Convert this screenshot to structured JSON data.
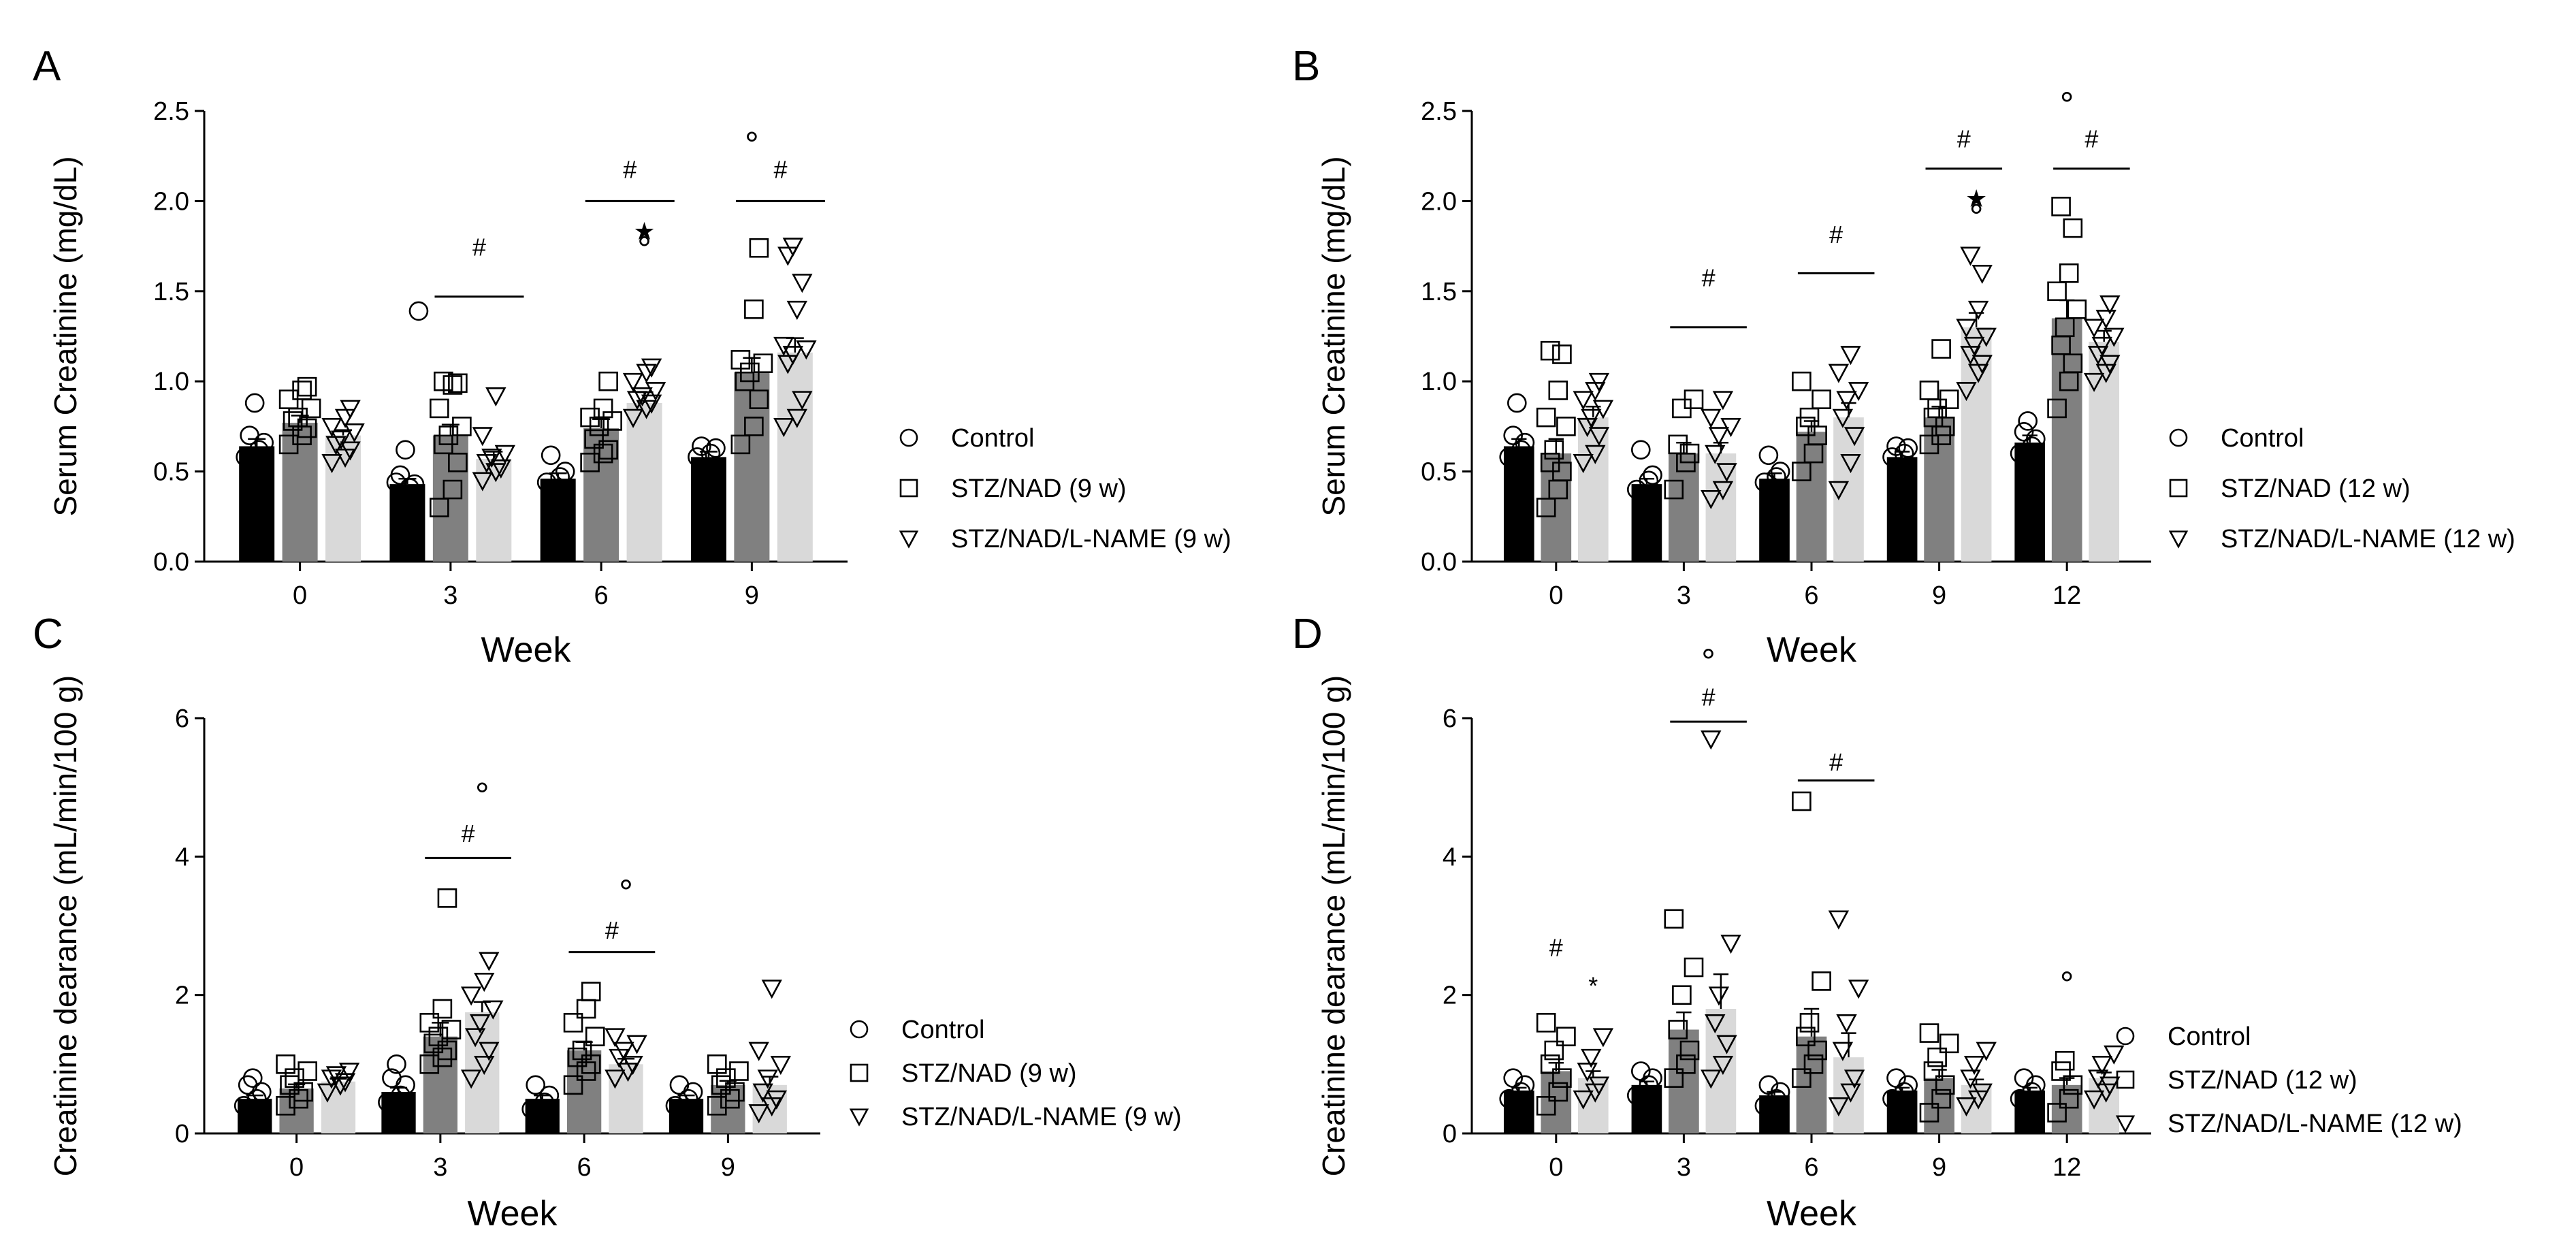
{
  "figure": {
    "labels": [
      "A",
      "B",
      "C",
      "D"
    ]
  },
  "chart_data": [
    {
      "panel": "A",
      "type": "bar",
      "xlabel": "Week",
      "ylabel": "Serum Creatinine (mg/dL)",
      "ylim": [
        0,
        2.5
      ],
      "y_ticks": [
        "0.0",
        "0.5",
        "1.0",
        "1.5",
        "2.0",
        "2.5"
      ],
      "categories": [
        "0",
        "3",
        "6",
        "9"
      ],
      "series": [
        {
          "name": "Control",
          "marker": "circle",
          "color": "#000000",
          "values": [
            0.64,
            0.43,
            0.46,
            0.58
          ],
          "errors": [
            0.04,
            0.03,
            0.03,
            0.03
          ]
        },
        {
          "name": "STZ/NAD (9 w)",
          "marker": "square",
          "color": "#808080",
          "values": [
            0.77,
            0.7,
            0.74,
            1.05
          ],
          "errors": [
            0.04,
            0.06,
            0.05,
            0.08
          ]
        },
        {
          "name": "STZ/NAD/L-NAME (9 w)",
          "marker": "triangle",
          "color": "#d9d9d9",
          "values": [
            0.7,
            0.57,
            0.88,
            1.16
          ],
          "errors": [
            0.03,
            0.04,
            0.06,
            0.08
          ]
        }
      ],
      "points": [
        [
          [
            0.58,
            0.62,
            0.66,
            0.7,
            0.88
          ],
          [
            0.44,
            0.41,
            0.43,
            0.48,
            0.62,
            1.39
          ],
          [
            0.44,
            0.47,
            0.5,
            0.59
          ],
          [
            0.58,
            0.6,
            0.63,
            0.64
          ]
        ],
        [
          [
            0.65,
            0.7,
            0.74,
            0.78,
            0.8,
            0.85,
            0.9,
            0.95,
            0.97
          ],
          [
            0.3,
            0.4,
            0.55,
            0.65,
            0.7,
            0.75,
            0.85,
            0.98,
            0.99,
            1.0
          ],
          [
            0.55,
            0.6,
            0.62,
            0.68,
            0.75,
            0.78,
            0.8,
            0.85,
            1.0
          ],
          [
            0.65,
            0.75,
            0.9,
            1.0,
            1.05,
            1.1,
            1.12,
            1.4,
            1.74
          ]
        ],
        [
          [
            0.55,
            0.58,
            0.62,
            0.65,
            0.68,
            0.72,
            0.75,
            0.8,
            0.85
          ],
          [
            0.45,
            0.5,
            0.52,
            0.55,
            0.58,
            0.6,
            0.7,
            0.92
          ],
          [
            0.8,
            0.85,
            0.88,
            0.9,
            0.92,
            0.95,
            1.0,
            1.05,
            1.08
          ],
          [
            0.75,
            0.8,
            0.9,
            1.1,
            1.15,
            1.18,
            1.2,
            1.4,
            1.55,
            1.7,
            1.75
          ]
        ]
      ],
      "annotations": [
        {
          "cat": 1,
          "text": "#",
          "y": 1.75
        },
        {
          "cat": 2,
          "text": "#",
          "y": 2.18
        },
        {
          "cat": 2,
          "text": "★",
          "series": 2,
          "y": 1.84
        },
        {
          "cat": 2,
          "text": "°",
          "series": 2,
          "y": 1.72
        },
        {
          "cat": 3,
          "text": "#",
          "y": 2.18
        },
        {
          "cat": 3,
          "text": "°",
          "series": 1,
          "y": 2.3
        }
      ],
      "sig_lines": [
        {
          "cat": 1,
          "y": 1.47
        },
        {
          "cat": 2,
          "y": 2.0
        },
        {
          "cat": 3,
          "y": 2.0
        }
      ],
      "legend": [
        "Control",
        "STZ/NAD (9 w)",
        "STZ/NAD/L-NAME (9 w)"
      ]
    },
    {
      "panel": "B",
      "type": "bar",
      "xlabel": "Week",
      "ylabel": "Serum Creatinine (mg/dL)",
      "ylim": [
        0,
        2.5
      ],
      "y_ticks": [
        "0.0",
        "0.5",
        "1.0",
        "1.5",
        "2.0",
        "2.5"
      ],
      "categories": [
        "0",
        "3",
        "6",
        "9",
        "12"
      ],
      "series": [
        {
          "name": "Control",
          "marker": "circle",
          "color": "#000000",
          "values": [
            0.64,
            0.43,
            0.46,
            0.58,
            0.66
          ],
          "errors": [
            0.04,
            0.03,
            0.03,
            0.03,
            0.04
          ]
        },
        {
          "name": "STZ/NAD (12 w)",
          "marker": "square",
          "color": "#808080",
          "values": [
            0.6,
            0.6,
            0.72,
            0.8,
            1.35
          ],
          "errors": [
            0.08,
            0.06,
            0.06,
            0.06,
            0.1
          ]
        },
        {
          "name": "STZ/NAD/L-NAME (12 w)",
          "marker": "triangle",
          "color": "#d9d9d9",
          "values": [
            0.8,
            0.6,
            0.8,
            1.3,
            1.22
          ],
          "errors": [
            0.06,
            0.06,
            0.08,
            0.08,
            0.06
          ]
        }
      ],
      "points": [
        [
          [
            0.58,
            0.62,
            0.66,
            0.7,
            0.88
          ],
          [
            0.4,
            0.45,
            0.48,
            0.62
          ],
          [
            0.44,
            0.47,
            0.5,
            0.59
          ],
          [
            0.58,
            0.6,
            0.63,
            0.64
          ],
          [
            0.6,
            0.64,
            0.68,
            0.72,
            0.78
          ]
        ],
        [
          [
            0.3,
            0.4,
            0.5,
            0.55,
            0.62,
            0.75,
            0.8,
            0.95,
            1.15,
            1.17
          ],
          [
            0.4,
            0.55,
            0.6,
            0.65,
            0.85,
            0.9
          ],
          [
            0.5,
            0.6,
            0.7,
            0.75,
            0.8,
            0.9,
            1.0
          ],
          [
            0.65,
            0.7,
            0.75,
            0.8,
            0.85,
            0.9,
            0.95,
            1.18
          ],
          [
            0.85,
            1.0,
            1.1,
            1.2,
            1.3,
            1.4,
            1.5,
            1.6,
            1.85,
            1.97
          ]
        ],
        [
          [
            0.55,
            0.6,
            0.7,
            0.75,
            0.8,
            0.85,
            0.9,
            0.95,
            1.0
          ],
          [
            0.35,
            0.4,
            0.5,
            0.6,
            0.7,
            0.75,
            0.8,
            0.9
          ],
          [
            0.4,
            0.55,
            0.7,
            0.8,
            0.9,
            0.95,
            1.05,
            1.15
          ],
          [
            0.95,
            1.05,
            1.1,
            1.15,
            1.2,
            1.25,
            1.3,
            1.4,
            1.6,
            1.7
          ],
          [
            1.0,
            1.05,
            1.1,
            1.15,
            1.2,
            1.25,
            1.3,
            1.35,
            1.43
          ]
        ]
      ],
      "annotations": [
        {
          "cat": 1,
          "text": "#",
          "y": 1.58
        },
        {
          "cat": 2,
          "text": "#",
          "y": 1.82
        },
        {
          "cat": 3,
          "text": "#",
          "y": 2.35
        },
        {
          "cat": 3,
          "text": "★",
          "series": 2,
          "y": 2.02
        },
        {
          "cat": 3,
          "text": "°",
          "series": 2,
          "y": 1.9
        },
        {
          "cat": 4,
          "text": "#",
          "y": 2.35
        },
        {
          "cat": 4,
          "text": "°",
          "series": 1,
          "y": 2.52
        }
      ],
      "sig_lines": [
        {
          "cat": 1,
          "y": 1.3
        },
        {
          "cat": 2,
          "y": 1.6
        },
        {
          "cat": 3,
          "y": 2.18
        },
        {
          "cat": 4,
          "y": 2.18
        }
      ],
      "legend": [
        "Control",
        "STZ/NAD (12 w)",
        "STZ/NAD/L-NAME (12 w)"
      ]
    },
    {
      "panel": "C",
      "type": "bar",
      "xlabel": "Week",
      "ylabel": "Creatinine dearance (mL/min/100 g)",
      "ylim": [
        0,
        6
      ],
      "y_ticks": [
        "0",
        "2",
        "4",
        "6"
      ],
      "categories": [
        "0",
        "3",
        "6",
        "9"
      ],
      "series": [
        {
          "name": "Control",
          "marker": "circle",
          "color": "#000000",
          "values": [
            0.5,
            0.6,
            0.5,
            0.5
          ],
          "errors": [
            0.05,
            0.06,
            0.05,
            0.05
          ]
        },
        {
          "name": "STZ/NAD (9 w)",
          "marker": "square",
          "color": "#808080",
          "values": [
            0.65,
            1.4,
            1.2,
            0.7
          ],
          "errors": [
            0.06,
            0.2,
            0.12,
            0.06
          ]
        },
        {
          "name": "STZ/NAD/L-NAME (9 w)",
          "marker": "triangle",
          "color": "#d9d9d9",
          "values": [
            0.75,
            1.75,
            1.0,
            0.7
          ],
          "errors": [
            0.04,
            0.15,
            0.08,
            0.12
          ]
        }
      ],
      "points": [
        [
          [
            0.4,
            0.5,
            0.6,
            0.7,
            0.8
          ],
          [
            0.45,
            0.55,
            0.7,
            0.8,
            1.0
          ],
          [
            0.35,
            0.45,
            0.55,
            0.7
          ],
          [
            0.4,
            0.5,
            0.6,
            0.7
          ]
        ],
        [
          [
            0.4,
            0.5,
            0.6,
            0.7,
            0.8,
            0.9,
            1.0
          ],
          [
            1.0,
            1.1,
            1.2,
            1.3,
            1.4,
            1.5,
            1.6,
            1.8,
            3.4
          ],
          [
            0.7,
            0.9,
            1.0,
            1.1,
            1.2,
            1.4,
            1.6,
            1.8,
            2.05
          ],
          [
            0.4,
            0.5,
            0.6,
            0.7,
            0.8,
            0.9,
            1.0
          ]
        ],
        [
          [
            0.6,
            0.7,
            0.75,
            0.8,
            0.85,
            0.9
          ],
          [
            0.8,
            1.0,
            1.2,
            1.4,
            1.6,
            1.8,
            2.0,
            2.2,
            2.5
          ],
          [
            0.8,
            0.9,
            1.0,
            1.1,
            1.2,
            1.3,
            1.4
          ],
          [
            0.3,
            0.4,
            0.5,
            0.6,
            0.8,
            1.0,
            1.2,
            2.1
          ]
        ]
      ],
      "annotations": [
        {
          "cat": 1,
          "text": "#",
          "y": 4.35
        },
        {
          "cat": 1,
          "text": "°",
          "series": 2,
          "y": 4.85
        },
        {
          "cat": 2,
          "text": "#",
          "y": 2.95
        },
        {
          "cat": 2,
          "text": "°",
          "series": 2,
          "y": 3.45
        }
      ],
      "sig_lines": [
        {
          "cat": 1,
          "y": 3.98
        },
        {
          "cat": 2,
          "y": 2.62
        }
      ],
      "legend": [
        "Control",
        "STZ/NAD (9 w)",
        "STZ/NAD/L-NAME (9 w)"
      ]
    },
    {
      "panel": "D",
      "type": "bar",
      "xlabel": "Week",
      "ylabel": "Creatinine dearance (mL/min/100 g)",
      "ylim": [
        0,
        6
      ],
      "y_ticks": [
        "0",
        "2",
        "4",
        "6"
      ],
      "categories": [
        "0",
        "3",
        "6",
        "9",
        "12"
      ],
      "series": [
        {
          "name": "Control",
          "marker": "circle",
          "color": "#000000",
          "values": [
            0.62,
            0.7,
            0.55,
            0.62,
            0.62
          ],
          "errors": [
            0.04,
            0.05,
            0.05,
            0.04,
            0.04
          ]
        },
        {
          "name": "STZ/NAD (12 w)",
          "marker": "square",
          "color": "#808080",
          "values": [
            0.9,
            1.5,
            1.4,
            0.8,
            0.7
          ],
          "errors": [
            0.12,
            0.25,
            0.4,
            0.12,
            0.1
          ]
        },
        {
          "name": "STZ/NAD/L-NAME (12 w)",
          "marker": "triangle",
          "color": "#d9d9d9",
          "values": [
            0.8,
            1.8,
            1.1,
            0.7,
            0.8
          ],
          "errors": [
            0.1,
            0.5,
            0.35,
            0.08,
            0.08
          ]
        }
      ],
      "points": [
        [
          [
            0.5,
            0.6,
            0.7,
            0.8
          ],
          [
            0.55,
            0.7,
            0.8,
            0.9
          ],
          [
            0.4,
            0.5,
            0.6,
            0.7
          ],
          [
            0.5,
            0.6,
            0.7,
            0.8
          ],
          [
            0.5,
            0.6,
            0.7,
            0.8
          ]
        ],
        [
          [
            0.4,
            0.6,
            0.8,
            1.0,
            1.2,
            1.4,
            1.6
          ],
          [
            0.8,
            1.0,
            1.2,
            1.5,
            2.0,
            2.4,
            3.1
          ],
          [
            0.8,
            1.0,
            1.2,
            1.4,
            1.6,
            2.2,
            4.8
          ],
          [
            0.3,
            0.5,
            0.7,
            0.9,
            1.1,
            1.3,
            1.45
          ],
          [
            0.3,
            0.5,
            0.7,
            0.9,
            1.05
          ]
        ],
        [
          [
            0.5,
            0.6,
            0.7,
            0.9,
            1.1,
            1.4
          ],
          [
            0.8,
            1.0,
            1.3,
            1.6,
            2.0,
            2.75,
            5.7
          ],
          [
            0.4,
            0.6,
            0.8,
            1.2,
            1.6,
            2.1,
            3.1
          ],
          [
            0.4,
            0.5,
            0.6,
            0.8,
            1.0,
            1.2
          ],
          [
            0.5,
            0.6,
            0.7,
            0.8,
            1.0,
            1.15
          ]
        ]
      ],
      "annotations": [
        {
          "cat": 0,
          "text": "#",
          "series": 1,
          "y": 2.7
        },
        {
          "cat": 0,
          "text": "*",
          "series": 2,
          "y": 2.15
        },
        {
          "cat": 1,
          "text": "#",
          "y": 6.32
        },
        {
          "cat": 1,
          "text": "°",
          "y": 6.78
        },
        {
          "cat": 2,
          "text": "#",
          "y": 5.38
        },
        {
          "cat": 4,
          "text": "°",
          "series": 1,
          "y": 2.12
        }
      ],
      "sig_lines": [
        {
          "cat": 1,
          "y": 5.95
        },
        {
          "cat": 2,
          "y": 5.1
        }
      ],
      "legend": [
        "Control",
        "STZ/NAD (12 w)",
        "STZ/NAD/L-NAME (12 w)"
      ]
    }
  ]
}
